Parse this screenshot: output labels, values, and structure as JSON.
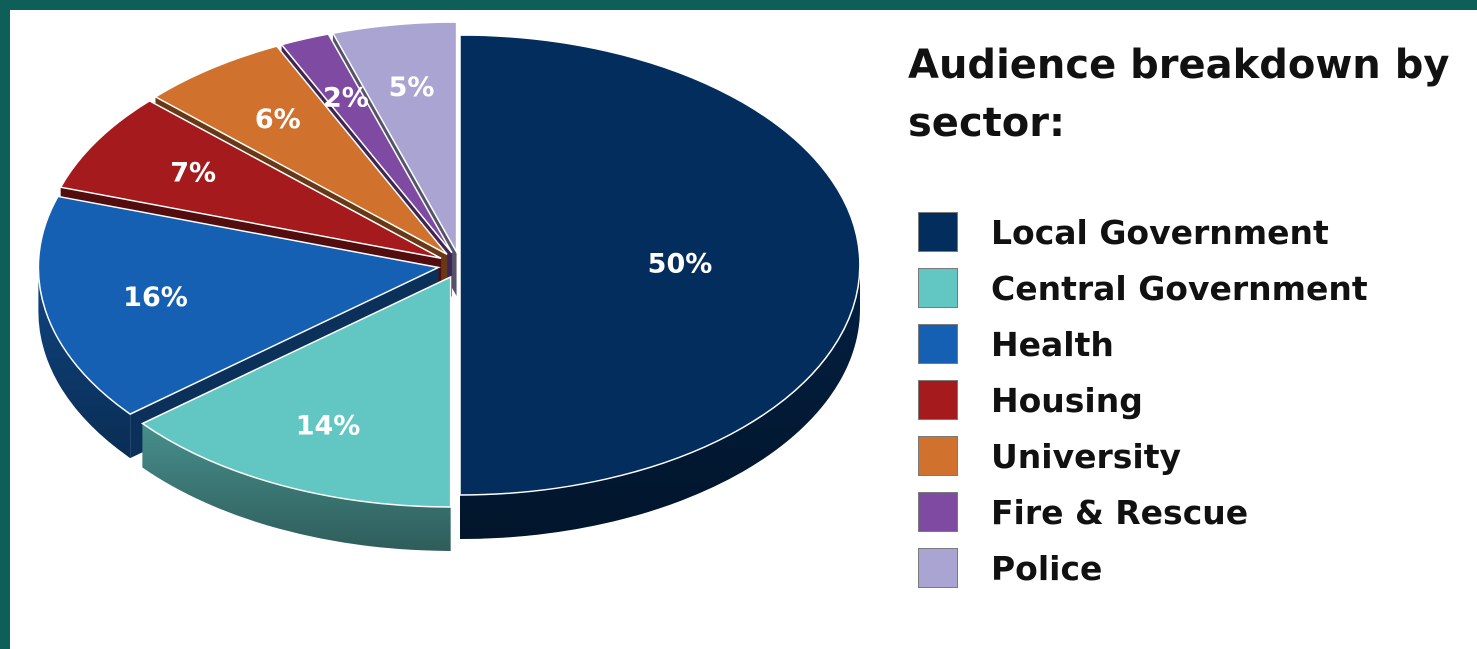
{
  "title": "Audience breakdown by sector:",
  "chart_data": {
    "type": "pie",
    "style": "3d-exploded",
    "categories": [
      "Local Government",
      "Central Government",
      "Health",
      "Housing",
      "University",
      "Fire & Rescue",
      "Police"
    ],
    "values": [
      50,
      14,
      16,
      7,
      6,
      2,
      5
    ],
    "data_labels": [
      "50%",
      "14%",
      "16%",
      "7%",
      "6%",
      "2%",
      "5%"
    ],
    "colors": [
      "#032d5c",
      "#62c6c3",
      "#1560b3",
      "#a51a1c",
      "#d0712e",
      "#7e4aa2",
      "#aaa4d2"
    ],
    "label_colors": [
      "#ffffff",
      "#ffffff",
      "#ffffff",
      "#ffffff",
      "#ffffff",
      "#ffffff",
      "#ffffff"
    ],
    "legend_position": "right"
  }
}
